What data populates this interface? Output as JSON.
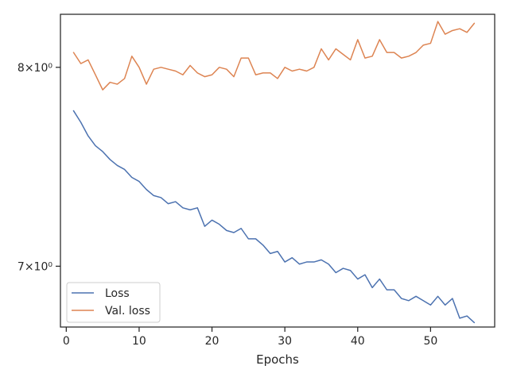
{
  "chart_data": {
    "type": "line",
    "title": "",
    "xlabel": "Epochs",
    "ylabel": "",
    "xlim": [
      -0.8,
      58.8
    ],
    "ylim": [
      6.72,
      8.29
    ],
    "yscale": "log",
    "x_ticks": [
      0,
      10,
      20,
      30,
      40,
      50
    ],
    "y_ticks": [
      {
        "value": 7,
        "label": "7×10⁰"
      },
      {
        "value": 8,
        "label": "8×10⁰"
      }
    ],
    "grid": false,
    "legend_position": "lower-left",
    "x": [
      1,
      2,
      3,
      4,
      5,
      6,
      7,
      8,
      9,
      10,
      11,
      12,
      13,
      14,
      15,
      16,
      17,
      18,
      19,
      20,
      21,
      22,
      23,
      24,
      25,
      26,
      27,
      28,
      29,
      30,
      31,
      32,
      33,
      34,
      35,
      36,
      37,
      38,
      39,
      40,
      41,
      42,
      43,
      44,
      45,
      46,
      47,
      48,
      49,
      50,
      51,
      52,
      53,
      54,
      55,
      56
    ],
    "series": [
      {
        "name": "Loss",
        "color": "#4c72b0",
        "values": [
          7.77,
          7.71,
          7.64,
          7.59,
          7.56,
          7.52,
          7.49,
          7.47,
          7.43,
          7.41,
          7.37,
          7.34,
          7.33,
          7.3,
          7.31,
          7.28,
          7.27,
          7.28,
          7.19,
          7.22,
          7.2,
          7.17,
          7.16,
          7.18,
          7.13,
          7.13,
          7.1,
          7.06,
          7.07,
          7.02,
          7.04,
          7.01,
          7.02,
          7.02,
          7.03,
          7.01,
          6.97,
          6.99,
          6.98,
          6.94,
          6.96,
          6.9,
          6.94,
          6.89,
          6.89,
          6.85,
          6.84,
          6.86,
          6.84,
          6.82,
          6.86,
          6.82,
          6.85,
          6.76,
          6.77,
          6.74
        ]
      },
      {
        "name": "Val. loss",
        "color": "#dd8452",
        "values": [
          8.08,
          8.02,
          8.04,
          7.96,
          7.88,
          7.92,
          7.91,
          7.94,
          8.06,
          8.0,
          7.91,
          7.99,
          8.0,
          7.99,
          7.98,
          7.96,
          8.01,
          7.97,
          7.95,
          7.96,
          8.0,
          7.99,
          7.95,
          8.05,
          8.05,
          7.96,
          7.97,
          7.97,
          7.94,
          8.0,
          7.98,
          7.99,
          7.98,
          8.0,
          8.1,
          8.04,
          8.1,
          8.07,
          8.04,
          8.15,
          8.05,
          8.06,
          8.15,
          8.08,
          8.08,
          8.05,
          8.06,
          8.08,
          8.12,
          8.13,
          8.25,
          8.18,
          8.2,
          8.21,
          8.19,
          8.24
        ]
      }
    ]
  }
}
